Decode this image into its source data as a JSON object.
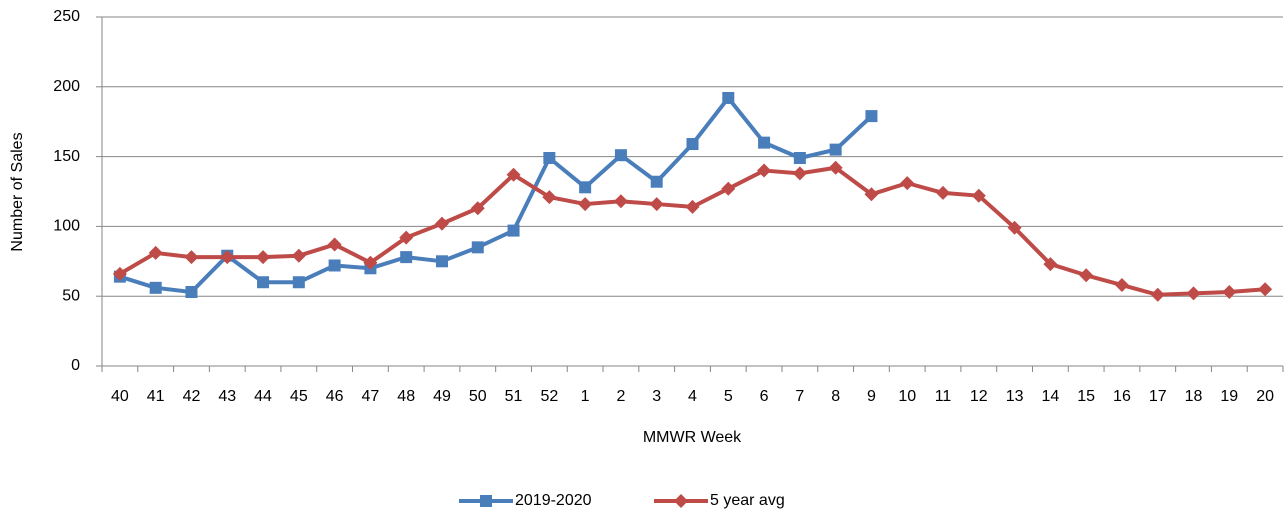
{
  "chart_data": {
    "type": "line",
    "x_label": "MMWR Week",
    "y_label": "Number of Sales",
    "categories": [
      "40",
      "41",
      "42",
      "43",
      "44",
      "45",
      "46",
      "47",
      "48",
      "49",
      "50",
      "51",
      "52",
      "1",
      "2",
      "3",
      "4",
      "5",
      "6",
      "7",
      "8",
      "9",
      "10",
      "11",
      "12",
      "13",
      "14",
      "15",
      "16",
      "17",
      "18",
      "19",
      "20"
    ],
    "series": [
      {
        "name": "2019-2020",
        "color": "#4a7ebb",
        "marker": "square",
        "values": [
          64,
          56,
          53,
          79,
          60,
          60,
          72,
          70,
          78,
          75,
          85,
          97,
          149,
          128,
          151,
          132,
          159,
          192,
          160,
          149,
          155,
          179,
          null,
          null,
          null,
          null,
          null,
          null,
          null,
          null,
          null,
          null,
          null
        ]
      },
      {
        "name": "5 year avg",
        "color": "#be4b48",
        "marker": "diamond",
        "values": [
          66,
          81,
          78,
          78,
          78,
          79,
          87,
          74,
          92,
          102,
          113,
          137,
          121,
          116,
          118,
          116,
          114,
          127,
          140,
          138,
          142,
          123,
          131,
          124,
          122,
          99,
          73,
          65,
          58,
          51,
          52,
          53,
          55
        ]
      }
    ],
    "ylim": [
      0,
      250
    ],
    "yticks": [
      0,
      50,
      100,
      150,
      200,
      250
    ],
    "grid": true,
    "legend": "bottom"
  }
}
